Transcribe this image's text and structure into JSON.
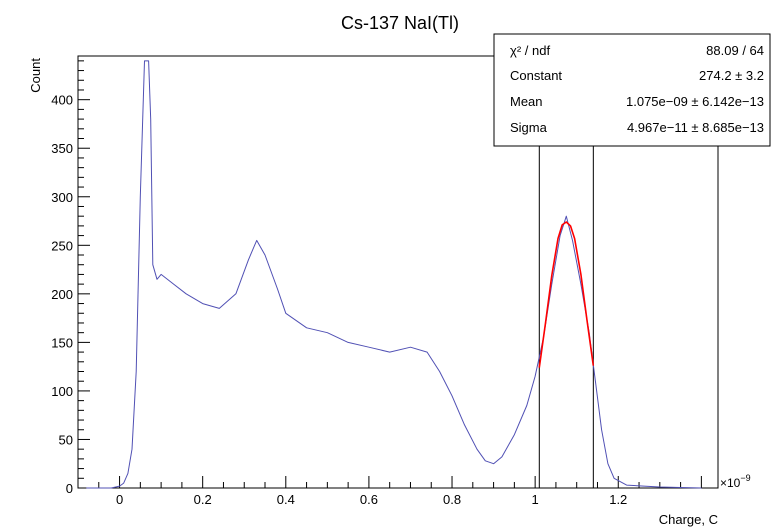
{
  "chart_data": {
    "type": "line",
    "title": "Cs-137 NaI(Tl)",
    "xlabel": "Charge, C",
    "ylabel": "Count",
    "x_exponent_label": "×10",
    "x_exponent_power": "−9",
    "xlim": [
      -0.1,
      1.44
    ],
    "ylim": [
      0,
      445
    ],
    "x_ticks": [
      0,
      0.2,
      0.4,
      0.6,
      0.8,
      1,
      1.2
    ],
    "x_tick_labels": [
      "0",
      "0.2",
      "0.4",
      "0.6",
      "0.8",
      "1",
      "1.2"
    ],
    "y_ticks": [
      0,
      50,
      100,
      150,
      200,
      250,
      300,
      350,
      400
    ],
    "y_tick_labels": [
      "0",
      "50",
      "100",
      "150",
      "200",
      "250",
      "300",
      "350",
      "400"
    ],
    "grid": false,
    "series": [
      {
        "color": "#5050b4",
        "x": [
          -0.08,
          -0.02,
          0.0,
          0.01,
          0.02,
          0.03,
          0.04,
          0.05,
          0.06,
          0.07,
          0.075,
          0.08,
          0.09,
          0.1,
          0.13,
          0.16,
          0.2,
          0.24,
          0.28,
          0.31,
          0.33,
          0.35,
          0.38,
          0.4,
          0.45,
          0.5,
          0.55,
          0.6,
          0.65,
          0.7,
          0.74,
          0.77,
          0.8,
          0.83,
          0.86,
          0.88,
          0.9,
          0.92,
          0.95,
          0.98,
          1.0,
          1.02,
          1.04,
          1.06,
          1.075,
          1.09,
          1.11,
          1.13,
          1.145,
          1.16,
          1.175,
          1.19,
          1.22,
          1.3,
          1.4
        ],
        "y": [
          0,
          0,
          2,
          5,
          15,
          40,
          120,
          300,
          440,
          440,
          380,
          230,
          215,
          220,
          210,
          200,
          190,
          185,
          200,
          235,
          255,
          240,
          205,
          180,
          165,
          160,
          150,
          145,
          140,
          145,
          140,
          120,
          95,
          65,
          40,
          28,
          25,
          32,
          55,
          85,
          115,
          155,
          210,
          260,
          280,
          255,
          210,
          160,
          110,
          60,
          25,
          10,
          3,
          1,
          0
        ]
      },
      {
        "color": "#ff0000",
        "x": [
          1.01,
          1.025,
          1.04,
          1.055,
          1.065,
          1.075,
          1.085,
          1.095,
          1.11,
          1.125,
          1.14
        ],
        "y": [
          124,
          170,
          219,
          257,
          271,
          274,
          270,
          257,
          220,
          172,
          126
        ]
      }
    ],
    "fit_range": [
      1.01,
      1.14
    ],
    "stats_box": {
      "rows": [
        {
          "label": "χ² / ndf",
          "value": "88.09 / 64"
        },
        {
          "label": "Constant",
          "value": "274.2 ± 3.2"
        },
        {
          "label": "Mean",
          "value": "1.075e−09 ± 6.142e−13"
        },
        {
          "label": "Sigma",
          "value": "4.967e−11 ± 8.685e−13"
        }
      ]
    }
  }
}
